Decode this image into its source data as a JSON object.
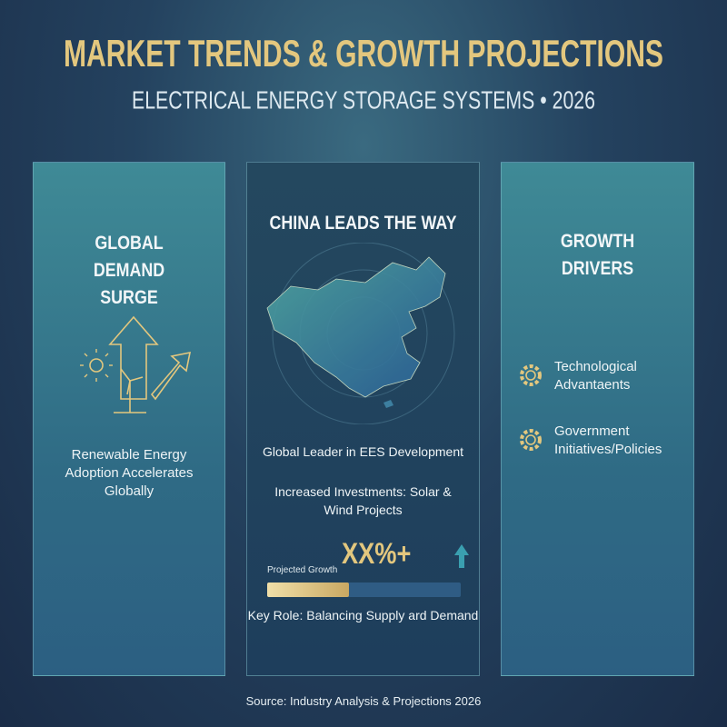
{
  "header": {
    "title": "MARKET TRENDS & GROWTH PROJECTIONS",
    "subtitle": "ELECTRICAL ENERGY STORAGE SYSTEMS • 2026"
  },
  "panels": [
    {
      "title": "GLOBAL DEMAND SURGE",
      "text": "Renewable Energy Adoption Accelerates Globally"
    },
    {
      "title": "CHINA LEADS THE WAY",
      "points": [
        "Global Leader in EES Development",
        "Increased Investments: Solar & Wind Projects"
      ],
      "growth_label": "Projected Growth",
      "growth_value": "XX%+",
      "key_role": "Key Role: Balancing Supply ard Demand"
    },
    {
      "title": "GROWTH DRIVERS",
      "drivers": [
        "Technological Advantaents",
        "Government Initiatives/Policies"
      ]
    }
  ],
  "source": "Source: Industry Analysis & Projections 2026"
}
